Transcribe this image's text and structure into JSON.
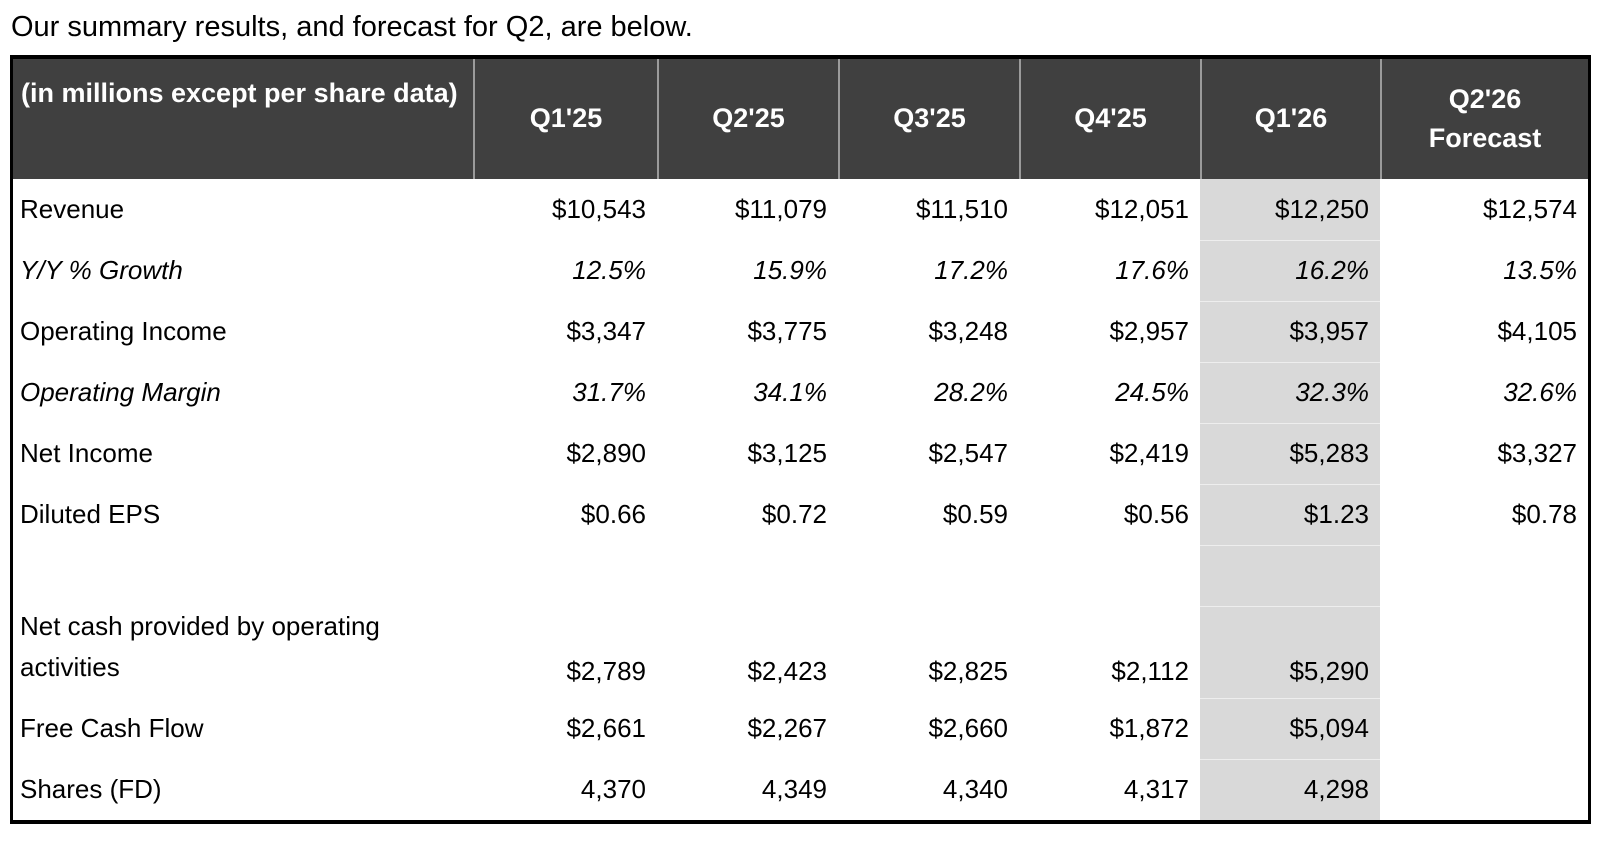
{
  "intro": {
    "text": "Our summary results, and forecast for Q2, are below."
  },
  "table": {
    "header": {
      "label": "(in millions except per share data)",
      "columns": [
        "Q1'25",
        "Q2'25",
        "Q3'25",
        "Q4'25",
        "Q1'26",
        "Q2'26\nForecast"
      ]
    },
    "rows": [
      {
        "label": "Revenue",
        "italic": false,
        "values": [
          "$10,543",
          "$11,079",
          "$11,510",
          "$12,051",
          "$12,250",
          "$12,574"
        ]
      },
      {
        "label": "Y/Y % Growth",
        "italic": true,
        "values": [
          "12.5%",
          "15.9%",
          "17.2%",
          "17.6%",
          "16.2%",
          "13.5%"
        ]
      },
      {
        "label": "Operating Income",
        "italic": false,
        "values": [
          "$3,347",
          "$3,775",
          "$3,248",
          "$2,957",
          "$3,957",
          "$4,105"
        ]
      },
      {
        "label": "Operating Margin",
        "italic": true,
        "values": [
          "31.7%",
          "34.1%",
          "28.2%",
          "24.5%",
          "32.3%",
          "32.6%"
        ]
      },
      {
        "label": "Net Income",
        "italic": false,
        "values": [
          "$2,890",
          "$3,125",
          "$2,547",
          "$2,419",
          "$5,283",
          "$3,327"
        ]
      },
      {
        "label": "Diluted EPS",
        "italic": false,
        "values": [
          "$0.66",
          "$0.72",
          "$0.59",
          "$0.56",
          "$1.23",
          "$0.78"
        ]
      },
      {
        "label": "",
        "blank": true,
        "values": [
          "",
          "",
          "",
          "",
          "",
          ""
        ]
      },
      {
        "label": "Net cash provided by operating activities",
        "tall": true,
        "values": [
          "$2,789",
          "$2,423",
          "$2,825",
          "$2,112",
          "$5,290",
          ""
        ]
      },
      {
        "label": "Free Cash Flow",
        "italic": false,
        "values": [
          "$2,661",
          "$2,267",
          "$2,660",
          "$1,872",
          "$5,094",
          ""
        ]
      },
      {
        "label": "Shares (FD)",
        "italic": false,
        "values": [
          "4,370",
          "4,349",
          "4,340",
          "4,317",
          "4,298",
          ""
        ]
      }
    ],
    "colors": {
      "header_bg": "#404040",
      "header_text": "#ffffff",
      "highlight_column_bg": "#d9d9d9",
      "border": "#000000",
      "body_text": "#000000"
    },
    "highlight_column": "Q1'26"
  }
}
